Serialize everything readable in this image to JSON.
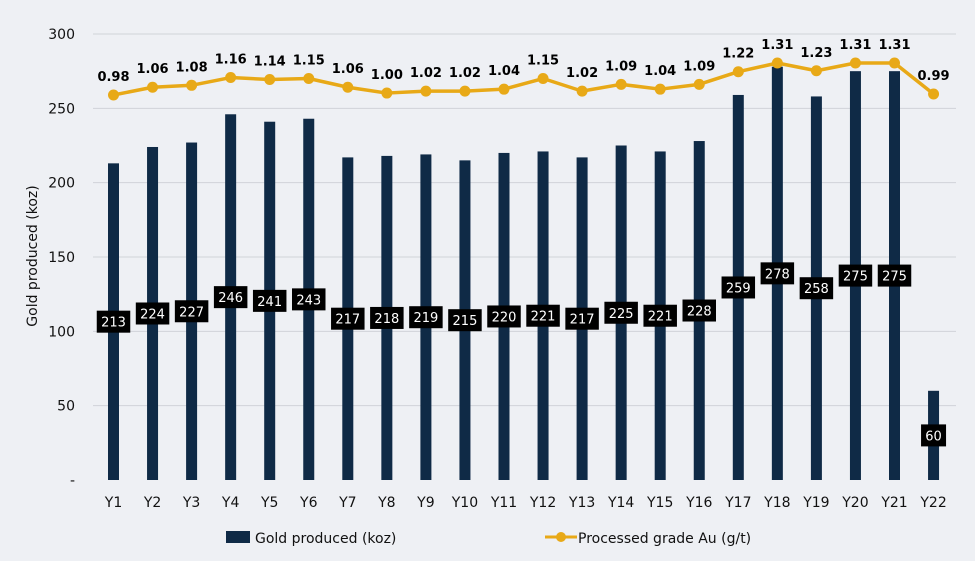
{
  "chart_data": {
    "type": "bar",
    "categories": [
      "Y1",
      "Y2",
      "Y3",
      "Y4",
      "Y5",
      "Y6",
      "Y7",
      "Y8",
      "Y9",
      "Y10",
      "Y11",
      "Y12",
      "Y13",
      "Y14",
      "Y15",
      "Y16",
      "Y17",
      "Y18",
      "Y19",
      "Y20",
      "Y21",
      "Y22"
    ],
    "series": [
      {
        "name": "Gold produced (koz)",
        "kind": "bar",
        "axis": "left",
        "color": "#0f2a46",
        "values": [
          213,
          224,
          227,
          246,
          241,
          243,
          217,
          218,
          219,
          215,
          220,
          221,
          217,
          225,
          221,
          228,
          259,
          278,
          258,
          275,
          275,
          60
        ],
        "labels": [
          "213",
          "224",
          "227",
          "246",
          "241",
          "243",
          "217",
          "218",
          "219",
          "215",
          "220",
          "221",
          "217",
          "225",
          "221",
          "228",
          "259",
          "278",
          "258",
          "275",
          "275",
          "60"
        ]
      },
      {
        "name": "Processed grade Au (g/t)",
        "kind": "line",
        "color": "#e8a917",
        "values": [
          0.98,
          1.06,
          1.08,
          1.16,
          1.14,
          1.15,
          1.06,
          1.0,
          1.02,
          1.02,
          1.04,
          1.15,
          1.02,
          1.09,
          1.04,
          1.09,
          1.22,
          1.31,
          1.23,
          1.31,
          1.31,
          0.99
        ],
        "labels": [
          "0.98",
          "1.06",
          "1.08",
          "1.16",
          "1.14",
          "1.15",
          "1.06",
          "1.00",
          "1.02",
          "1.02",
          "1.04",
          "1.15",
          "1.02",
          "1.09",
          "1.04",
          "1.09",
          "1.22",
          "1.31",
          "1.23",
          "1.31",
          "1.31",
          "0.99"
        ]
      }
    ],
    "title": "",
    "xlabel": "",
    "ylabel": "Gold produced (koz)",
    "ylim": [
      0,
      300
    ],
    "yticks": [
      0,
      50,
      100,
      150,
      200,
      250,
      300
    ],
    "ytick_labels": [
      "-",
      "50",
      "100",
      "150",
      "200",
      "250",
      "300"
    ],
    "grid": true,
    "legend": "bottom"
  }
}
